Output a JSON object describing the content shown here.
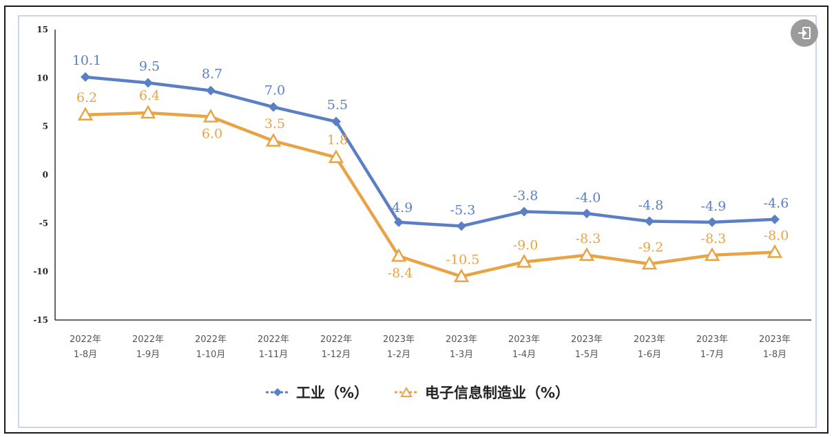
{
  "chart_data": {
    "type": "line",
    "categories": [
      [
        "2022年",
        "1-8月"
      ],
      [
        "2022年",
        "1-9月"
      ],
      [
        "2022年",
        "1-10月"
      ],
      [
        "2022年",
        "1-11月"
      ],
      [
        "2022年",
        "1-12月"
      ],
      [
        "2023年",
        "1-2月"
      ],
      [
        "2023年",
        "1-3月"
      ],
      [
        "2023年",
        "1-4月"
      ],
      [
        "2023年",
        "1-5月"
      ],
      [
        "2023年",
        "1-6月"
      ],
      [
        "2023年",
        "1-7月"
      ],
      [
        "2023年",
        "1-8月"
      ]
    ],
    "series": [
      {
        "name": "工业（%）",
        "color": "#5b7fc4",
        "marker": "diamond",
        "values": [
          10.1,
          9.5,
          8.7,
          7.0,
          5.5,
          -4.9,
          -5.3,
          -3.8,
          -4.0,
          -4.8,
          -4.9,
          -4.6
        ],
        "labels": [
          "10.1",
          "9.5",
          "8.7",
          "7.0",
          "5.5",
          "-4.9",
          "-5.3",
          "-3.8",
          "-4.0",
          "-4.8",
          "-4.9",
          "-4.6"
        ]
      },
      {
        "name": "电子信息制造业（%）",
        "color": "#e8a345",
        "marker": "triangle",
        "values": [
          6.2,
          6.4,
          6.0,
          3.5,
          1.8,
          -8.4,
          -10.5,
          -9.0,
          -8.3,
          -9.2,
          -8.3,
          -8.0
        ],
        "labels": [
          "6.2",
          "6.4",
          "6.0",
          "3.5",
          "1.8",
          "-8.4",
          "-10.5",
          "-9.0",
          "-8.3",
          "-9.2",
          "-8.3",
          "-8.0"
        ]
      }
    ],
    "ylim": [
      -15,
      15
    ],
    "yticks": [
      "15",
      "10",
      "5",
      "0",
      "-5",
      "-10",
      "-15"
    ],
    "grid": false,
    "legend": "bottom-center"
  },
  "icons": {
    "exit": "exit-icon"
  }
}
